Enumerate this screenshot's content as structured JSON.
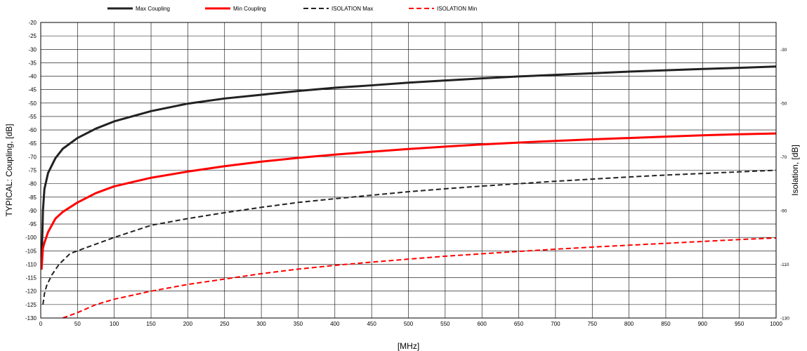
{
  "chart_data": {
    "type": "line",
    "title": "",
    "xlabel": "[MHz]",
    "ylabel": "TYPICAL: Coupling, [dB]",
    "y2label": "Isolation, [dB]",
    "xlim": [
      0,
      1000
    ],
    "ylim": [
      -130,
      -20
    ],
    "y2lim": [
      -130,
      -20
    ],
    "x_ticks": [
      "0",
      "50",
      "100",
      "150",
      "200",
      "250",
      "300",
      "350",
      "400",
      "450",
      "500",
      "550",
      "600",
      "650",
      "700",
      "750",
      "800",
      "850",
      "900",
      "950",
      "1000"
    ],
    "y_ticks": [
      "-20",
      "-25",
      "-30",
      "-35",
      "-40",
      "-45",
      "-50",
      "-55",
      "-60",
      "-65",
      "-70",
      "-75",
      "-80",
      "-85",
      "-90",
      "-95",
      "-100",
      "-105",
      "-110",
      "-115",
      "-120",
      "-125",
      "-130"
    ],
    "y2_ticks": [
      "-30",
      "-50",
      "-70",
      "-90",
      "-110",
      "-130"
    ],
    "grid": true,
    "legend_position": "top",
    "series": [
      {
        "name": "Max Coupling",
        "color": "#222222",
        "dash": "solid",
        "axis": "left",
        "x": [
          1,
          3,
          5,
          10,
          20,
          30,
          50,
          75,
          100,
          150,
          200,
          250,
          300,
          350,
          400,
          450,
          500,
          550,
          600,
          650,
          700,
          750,
          800,
          850,
          900,
          950,
          1000
        ],
        "y": [
          -112,
          -90,
          -82,
          -76,
          -70.5,
          -67,
          -63,
          -59.5,
          -56.8,
          -53,
          -50.2,
          -48.3,
          -46.9,
          -45.5,
          -44.3,
          -43.4,
          -42.4,
          -41.6,
          -40.8,
          -40.1,
          -39.5,
          -38.9,
          -38.3,
          -37.8,
          -37.3,
          -36.9,
          -36.4
        ]
      },
      {
        "name": "Min Coupling",
        "color": "#ff0000",
        "dash": "solid",
        "axis": "left",
        "x": [
          1,
          3,
          5,
          10,
          20,
          30,
          50,
          75,
          100,
          150,
          200,
          250,
          300,
          350,
          400,
          450,
          500,
          550,
          600,
          650,
          700,
          750,
          800,
          850,
          900,
          950,
          1000
        ],
        "y": [
          -112,
          -104,
          -102,
          -98,
          -93,
          -90.5,
          -87,
          -83.5,
          -81,
          -77.8,
          -75.5,
          -73.5,
          -71.8,
          -70.4,
          -69.2,
          -68.1,
          -67.1,
          -66.2,
          -65.4,
          -64.7,
          -64.1,
          -63.5,
          -63,
          -62.5,
          -62,
          -61.6,
          -61.3
        ]
      },
      {
        "name": "ISOLATION Max",
        "color": "#222222",
        "dash": "dashed",
        "axis": "left",
        "x": [
          3,
          5,
          8,
          15,
          25,
          40,
          60,
          100,
          150,
          200,
          250,
          300,
          350,
          400,
          450,
          500,
          550,
          600,
          650,
          700,
          750,
          800,
          850,
          900,
          950,
          1000
        ],
        "y": [
          -125,
          -121,
          -118,
          -114,
          -110,
          -106,
          -104,
          -100,
          -95.5,
          -93,
          -90.8,
          -88.8,
          -87,
          -85.6,
          -84.3,
          -83,
          -81.9,
          -80.9,
          -80,
          -79.1,
          -78.3,
          -77.5,
          -76.8,
          -76.2,
          -75.6,
          -75
        ]
      },
      {
        "name": "ISOLATION Min",
        "color": "#ff0000",
        "dash": "dashed",
        "axis": "left",
        "x": [
          30,
          50,
          75,
          100,
          150,
          200,
          250,
          300,
          350,
          400,
          450,
          500,
          550,
          600,
          650,
          700,
          750,
          800,
          850,
          900,
          950,
          1000
        ],
        "y": [
          -130,
          -128,
          -125,
          -123,
          -120,
          -117.5,
          -115.5,
          -113.5,
          -111.8,
          -110.4,
          -109.2,
          -108.1,
          -107,
          -106.1,
          -105.2,
          -104.4,
          -103.6,
          -102.9,
          -102.2,
          -101.5,
          -100.8,
          -100.2
        ]
      }
    ]
  }
}
